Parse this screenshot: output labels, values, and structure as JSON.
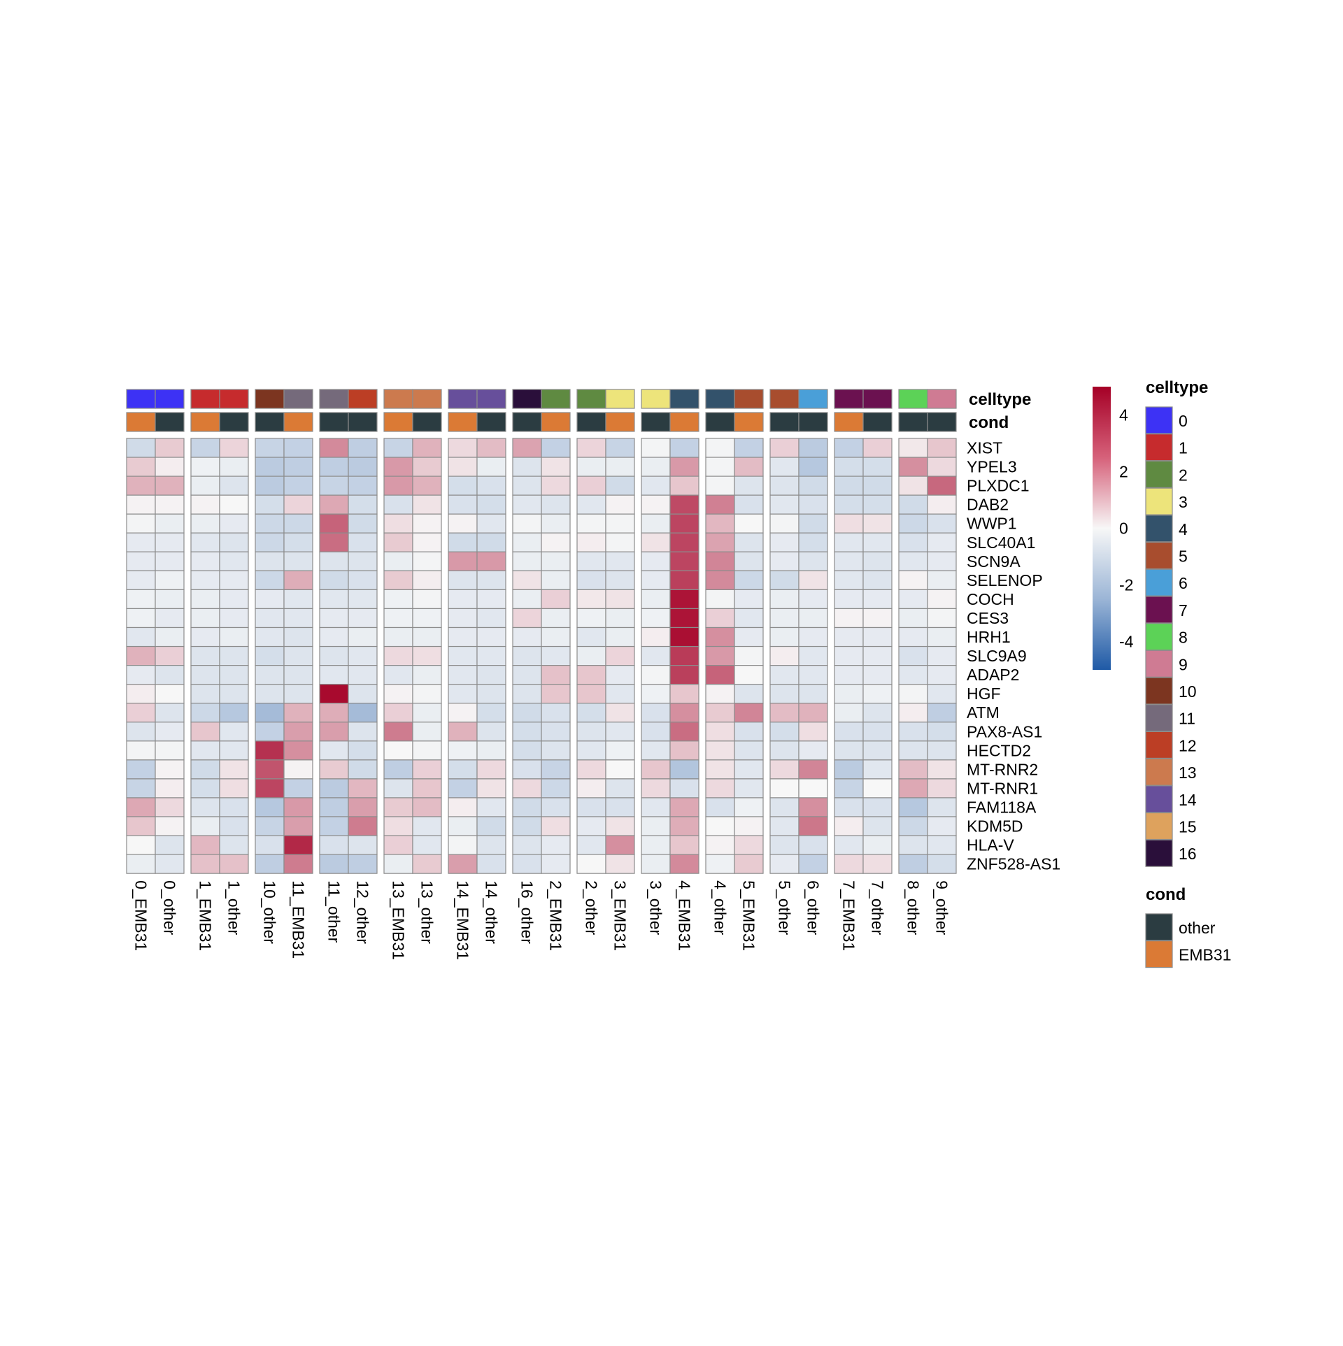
{
  "chart_data": {
    "type": "heatmap",
    "title": "",
    "color_scale": {
      "min": -5,
      "max": 5,
      "ticks": [
        4,
        2,
        0,
        -2,
        -4
      ],
      "colors": {
        "low": "#1f5aa6",
        "mid": "#f7f7f7",
        "high": "#a50026"
      }
    },
    "rows": [
      "XIST",
      "YPEL3",
      "PLXDC1",
      "DAB2",
      "WWP1",
      "SLC40A1",
      "SCN9A",
      "SELENOP",
      "COCH",
      "CES3",
      "HRH1",
      "SLC9A9",
      "ADAP2",
      "HGF",
      "ATM",
      "PAX8-AS1",
      "HECTD2",
      "MT-RNR2",
      "MT-RNR1",
      "FAM118A",
      "KDM5D",
      "HLA-V",
      "ZNF528-AS1"
    ],
    "columns": [
      "0_EMB31",
      "0_other",
      "1_EMB31",
      "1_other",
      "10_other",
      "11_EMB31",
      "11_other",
      "12_other",
      "13_EMB31",
      "13_other",
      "14_EMB31",
      "14_other",
      "16_other",
      "2_EMB31",
      "2_other",
      "3_EMB31",
      "3_other",
      "4_EMB31",
      "4_other",
      "5_EMB31",
      "5_other",
      "6_other",
      "7_EMB31",
      "7_other",
      "8_other",
      "9_other"
    ],
    "column_groups": [
      2,
      2,
      2,
      2,
      2,
      2,
      2,
      2,
      2,
      2,
      2,
      2,
      2
    ],
    "annotations": [
      {
        "name": "celltype",
        "values": [
          "0",
          "0",
          "1",
          "1",
          "10",
          "11",
          "11",
          "12",
          "13",
          "13",
          "14",
          "14",
          "16",
          "2",
          "2",
          "3",
          "3",
          "4",
          "4",
          "5",
          "5",
          "6",
          "7",
          "7",
          "8",
          "9"
        ]
      },
      {
        "name": "cond",
        "values": [
          "EMB31",
          "other",
          "EMB31",
          "other",
          "other",
          "EMB31",
          "other",
          "other",
          "EMB31",
          "other",
          "EMB31",
          "other",
          "other",
          "EMB31",
          "other",
          "EMB31",
          "other",
          "EMB31",
          "other",
          "EMB31",
          "other",
          "other",
          "EMB31",
          "other",
          "other",
          "other"
        ]
      }
    ],
    "legends": [
      {
        "title": "celltype",
        "entries": [
          {
            "label": "0",
            "color": "#3d32f5"
          },
          {
            "label": "1",
            "color": "#c62b2d"
          },
          {
            "label": "2",
            "color": "#5f8a41"
          },
          {
            "label": "3",
            "color": "#ede47b"
          },
          {
            "label": "4",
            "color": "#33526b"
          },
          {
            "label": "5",
            "color": "#a84d2e"
          },
          {
            "label": "6",
            "color": "#4a9fd8"
          },
          {
            "label": "7",
            "color": "#6b1150"
          },
          {
            "label": "8",
            "color": "#5cd257"
          },
          {
            "label": "9",
            "color": "#cf7b93"
          },
          {
            "label": "10",
            "color": "#7c3520"
          },
          {
            "label": "11",
            "color": "#756a7b"
          },
          {
            "label": "12",
            "color": "#bc3e25"
          },
          {
            "label": "13",
            "color": "#cc7a4e"
          },
          {
            "label": "14",
            "color": "#674f9b"
          },
          {
            "label": "15",
            "color": "#dea25d"
          },
          {
            "label": "16",
            "color": "#2a0f3a"
          }
        ]
      },
      {
        "title": "cond",
        "entries": [
          {
            "label": "other",
            "color": "#2b3c41"
          },
          {
            "label": "EMB31",
            "color": "#db7a35"
          }
        ]
      }
    ],
    "values": [
      [
        -0.9,
        0.9,
        -1.1,
        0.7,
        -1.1,
        -1.2,
        2.2,
        -1.3,
        -1.1,
        1.4,
        0.6,
        1.2,
        1.7,
        -1.2,
        0.7,
        -1.1,
        -0.1,
        -1.2,
        -0.1,
        -1.2,
        0.8,
        -1.4,
        -1.2,
        0.8,
        0.3,
        1.0
      ],
      [
        0.9,
        0.2,
        -0.2,
        -0.3,
        -1.4,
        -1.3,
        -1.3,
        -1.4,
        1.9,
        0.9,
        0.4,
        -0.3,
        -0.6,
        0.4,
        -0.3,
        -0.3,
        -0.3,
        1.9,
        -0.1,
        1.2,
        -0.5,
        -1.5,
        -0.8,
        -0.8,
        2.1,
        0.6
      ],
      [
        1.4,
        1.4,
        -0.3,
        -0.6,
        -1.4,
        -1.2,
        -1.1,
        -1.2,
        1.9,
        1.4,
        -0.8,
        -0.7,
        -0.6,
        0.6,
        0.8,
        -0.9,
        -0.5,
        1.0,
        -0.1,
        -0.6,
        -0.6,
        -0.9,
        -0.9,
        -0.9,
        0.4,
        2.9
      ],
      [
        0.1,
        0.1,
        0.1,
        0.0,
        -0.8,
        0.7,
        1.6,
        -0.8,
        -0.7,
        0.4,
        -0.7,
        -0.8,
        -0.5,
        -0.6,
        -0.5,
        0.1,
        0.1,
        3.5,
        2.4,
        -0.7,
        -0.5,
        -0.7,
        -0.8,
        -0.8,
        -0.9,
        0.2
      ],
      [
        -0.1,
        -0.3,
        -0.3,
        -0.4,
        -1.0,
        -1.0,
        3.0,
        -0.9,
        0.5,
        0.1,
        0.1,
        -0.5,
        -0.1,
        -0.3,
        -0.1,
        -0.1,
        -0.3,
        3.6,
        1.3,
        0.0,
        -0.1,
        -0.9,
        0.5,
        0.4,
        -1.0,
        -0.7
      ],
      [
        -0.4,
        -0.4,
        -0.5,
        -0.6,
        -1.0,
        -0.8,
        2.8,
        -0.7,
        0.9,
        0.1,
        -0.9,
        -0.9,
        -0.3,
        0.1,
        0.2,
        -0.1,
        0.4,
        3.6,
        1.7,
        -0.6,
        -0.4,
        -0.8,
        -0.5,
        -0.5,
        -0.7,
        -0.4
      ],
      [
        -0.4,
        -0.4,
        -0.4,
        -0.5,
        -0.6,
        -0.6,
        -0.6,
        -0.6,
        -0.3,
        -0.1,
        1.9,
        1.9,
        -0.3,
        -0.3,
        -0.5,
        -0.5,
        -0.4,
        3.6,
        2.3,
        -0.6,
        -0.4,
        -0.6,
        -0.5,
        -0.6,
        -0.5,
        -0.4
      ],
      [
        -0.4,
        -0.2,
        -0.4,
        -0.4,
        -1.0,
        1.5,
        -0.9,
        -0.7,
        0.9,
        0.2,
        -0.6,
        -0.6,
        0.4,
        -0.3,
        -0.7,
        -0.6,
        -0.4,
        3.7,
        2.2,
        -1.0,
        -0.9,
        0.4,
        -0.5,
        -0.6,
        0.1,
        -0.3
      ],
      [
        -0.2,
        -0.3,
        -0.3,
        -0.4,
        -0.4,
        -0.5,
        -0.5,
        -0.5,
        -0.2,
        -0.1,
        -0.4,
        -0.4,
        -0.3,
        0.8,
        0.3,
        0.4,
        -0.3,
        4.6,
        -0.1,
        -0.4,
        -0.3,
        -0.4,
        -0.4,
        -0.4,
        -0.4,
        0.1
      ],
      [
        -0.2,
        -0.4,
        -0.3,
        -0.4,
        -0.5,
        -0.5,
        -0.4,
        -0.4,
        -0.2,
        -0.2,
        -0.4,
        -0.5,
        0.7,
        -0.3,
        -0.2,
        -0.3,
        -0.2,
        4.6,
        0.8,
        -0.5,
        -0.3,
        -0.3,
        0.1,
        0.1,
        -0.3,
        -0.1
      ],
      [
        -0.5,
        -0.3,
        -0.4,
        -0.3,
        -0.5,
        -0.6,
        -0.4,
        -0.3,
        -0.3,
        -0.3,
        -0.4,
        -0.4,
        -0.4,
        -0.3,
        -0.5,
        -0.3,
        0.2,
        4.7,
        2.1,
        -0.4,
        -0.3,
        -0.4,
        -0.4,
        -0.4,
        -0.4,
        -0.3
      ],
      [
        1.4,
        0.8,
        -0.6,
        -0.6,
        -0.8,
        -0.6,
        -0.6,
        -0.5,
        0.6,
        0.5,
        -0.5,
        -0.5,
        -0.6,
        -0.5,
        -0.3,
        0.7,
        -0.5,
        3.8,
        1.9,
        -0.1,
        0.2,
        -0.5,
        -0.4,
        -0.4,
        -0.7,
        -0.4
      ],
      [
        -0.4,
        -0.6,
        -0.6,
        -0.6,
        -0.6,
        -0.6,
        -0.5,
        -0.5,
        -0.5,
        -0.3,
        -0.5,
        -0.6,
        -0.6,
        1.1,
        1.0,
        -0.4,
        -0.1,
        3.7,
        3.0,
        0.0,
        -0.5,
        -0.5,
        -0.4,
        -0.4,
        -0.5,
        -0.4
      ],
      [
        0.2,
        0.0,
        -0.6,
        -0.6,
        -0.6,
        -0.6,
        4.8,
        -0.6,
        0.1,
        -0.1,
        -0.5,
        -0.6,
        -0.6,
        1.0,
        1.0,
        -0.5,
        -0.2,
        1.0,
        0.1,
        -0.6,
        -0.6,
        -0.6,
        -0.3,
        -0.2,
        -0.1,
        -0.5
      ],
      [
        0.8,
        -0.6,
        -1.0,
        -1.5,
        -1.9,
        1.4,
        1.5,
        -1.9,
        0.8,
        -0.3,
        0.1,
        -0.8,
        -0.9,
        -0.7,
        -0.8,
        0.4,
        -0.7,
        2.1,
        0.9,
        2.3,
        1.2,
        1.4,
        -0.3,
        -0.6,
        0.2,
        -1.3
      ],
      [
        -0.6,
        -0.4,
        1.0,
        -0.5,
        -1.2,
        1.8,
        1.8,
        -0.6,
        2.5,
        -0.3,
        1.4,
        -0.6,
        -0.8,
        -0.7,
        -0.6,
        -0.5,
        -0.7,
        2.8,
        0.5,
        -0.7,
        -0.8,
        0.5,
        -0.7,
        -0.7,
        -0.7,
        -0.8
      ],
      [
        -0.1,
        -0.1,
        -0.5,
        -0.5,
        4.0,
        2.1,
        -0.5,
        -0.8,
        0.0,
        -0.1,
        -0.2,
        -0.3,
        -0.8,
        -0.6,
        -0.5,
        -0.2,
        -0.5,
        1.1,
        0.4,
        -0.6,
        -0.6,
        -0.4,
        -0.6,
        -0.6,
        -0.6,
        -0.6
      ],
      [
        -1.2,
        0.1,
        -0.9,
        0.4,
        3.3,
        0.1,
        0.9,
        -0.9,
        -1.3,
        0.8,
        -0.8,
        0.6,
        -0.7,
        -1.1,
        0.6,
        0.0,
        1.0,
        -1.6,
        0.4,
        -0.5,
        0.6,
        2.3,
        -1.4,
        -0.5,
        1.2,
        0.4
      ],
      [
        -1.1,
        0.2,
        -0.8,
        0.5,
        3.6,
        -1.2,
        -1.4,
        1.3,
        -0.6,
        1.0,
        -1.2,
        0.4,
        0.6,
        -1.0,
        0.2,
        -0.6,
        0.6,
        -0.7,
        0.6,
        -0.5,
        0.0,
        0.0,
        -1.1,
        0.0,
        1.6,
        0.6
      ],
      [
        1.6,
        0.6,
        -0.6,
        -0.7,
        -1.5,
        1.9,
        -1.3,
        1.8,
        0.9,
        1.2,
        0.2,
        -0.5,
        -0.9,
        -0.7,
        -0.7,
        -0.7,
        -0.5,
        1.6,
        -0.7,
        -0.2,
        -0.6,
        2.1,
        -0.7,
        -0.7,
        -1.5,
        -0.6
      ],
      [
        1.0,
        0.1,
        -0.3,
        -0.7,
        -1.1,
        1.8,
        -1.2,
        2.5,
        0.5,
        -0.5,
        -0.3,
        -0.9,
        -0.9,
        0.5,
        -0.4,
        0.4,
        -0.3,
        1.5,
        0.0,
        0.1,
        -0.5,
        2.6,
        0.2,
        -0.6,
        -1.0,
        -0.4
      ],
      [
        0.0,
        -0.6,
        1.3,
        -0.6,
        -0.7,
        4.2,
        -0.7,
        -0.6,
        0.8,
        -0.5,
        -0.1,
        -0.6,
        -0.6,
        -0.4,
        -0.5,
        2.1,
        -0.3,
        1.0,
        0.1,
        0.6,
        -0.6,
        -0.7,
        -0.5,
        -0.3,
        -0.6,
        -0.5
      ],
      [
        -0.3,
        -0.5,
        1.1,
        1.1,
        -1.3,
        2.5,
        -1.4,
        -1.3,
        -0.3,
        0.9,
        1.8,
        -0.7,
        -0.7,
        -0.4,
        0.0,
        0.4,
        -0.3,
        2.2,
        -0.2,
        0.9,
        -0.4,
        -1.2,
        0.6,
        0.5,
        -1.3,
        -0.8
      ]
    ]
  }
}
